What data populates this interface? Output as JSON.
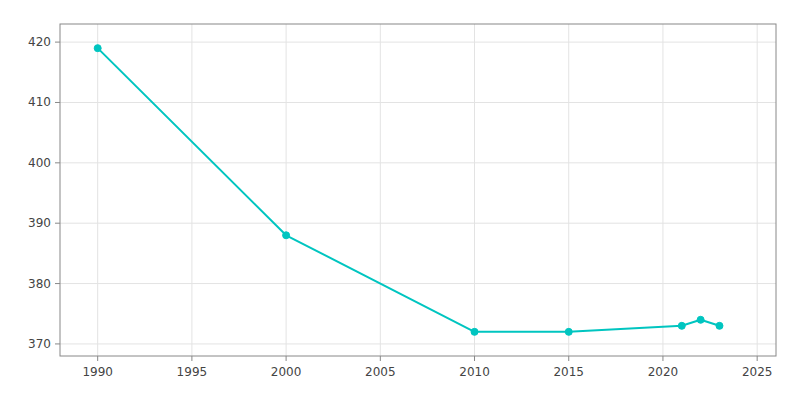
{
  "chart_data": {
    "type": "line",
    "x": [
      1990,
      2000,
      2010,
      2015,
      2021,
      2022,
      2023
    ],
    "values": [
      419,
      388,
      372,
      372,
      373,
      374,
      373
    ],
    "color": "#00C5C0",
    "marker": "circle",
    "xlim": [
      1988,
      2026
    ],
    "ylim": [
      368,
      423
    ],
    "xticks": [
      1990,
      1995,
      2000,
      2005,
      2010,
      2015,
      2020,
      2025
    ],
    "yticks": [
      370,
      380,
      390,
      400,
      410,
      420
    ],
    "grid": true
  }
}
